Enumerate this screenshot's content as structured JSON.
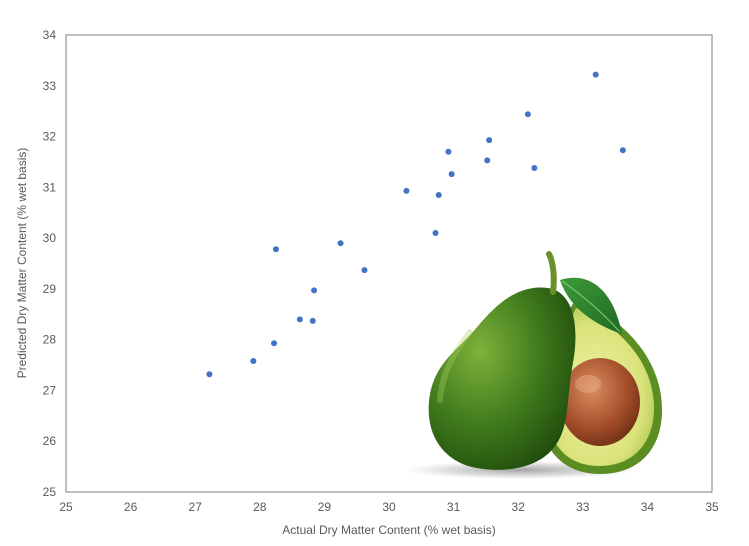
{
  "chart_data": {
    "type": "scatter",
    "title": "",
    "xlabel": "Actual Dry Matter Content (% wet basis)",
    "ylabel": "Predicted Dry Matter Content (% wet basis)",
    "xlim": [
      25,
      35
    ],
    "ylim": [
      25,
      34
    ],
    "xticks": [
      25,
      26,
      27,
      28,
      29,
      30,
      31,
      32,
      33,
      34,
      35
    ],
    "yticks": [
      25,
      26,
      27,
      28,
      29,
      30,
      31,
      32,
      33,
      34
    ],
    "grid": false,
    "legend": "none",
    "marker_color": "#4472c4",
    "series": [
      {
        "x": [
          27.22,
          27.9,
          28.22,
          28.25,
          28.62,
          28.82,
          28.84,
          29.25,
          29.62,
          30.27,
          30.72,
          30.77,
          30.92,
          30.97,
          31.52,
          31.55,
          32.15,
          32.25,
          33.2,
          33.62
        ],
        "y": [
          27.32,
          27.58,
          27.93,
          29.78,
          28.4,
          28.37,
          28.97,
          29.9,
          29.37,
          30.93,
          30.1,
          30.85,
          31.7,
          31.26,
          31.53,
          31.93,
          32.44,
          31.38,
          33.22,
          31.73
        ]
      }
    ]
  },
  "overlay": {
    "image": "avocado-illustration"
  }
}
